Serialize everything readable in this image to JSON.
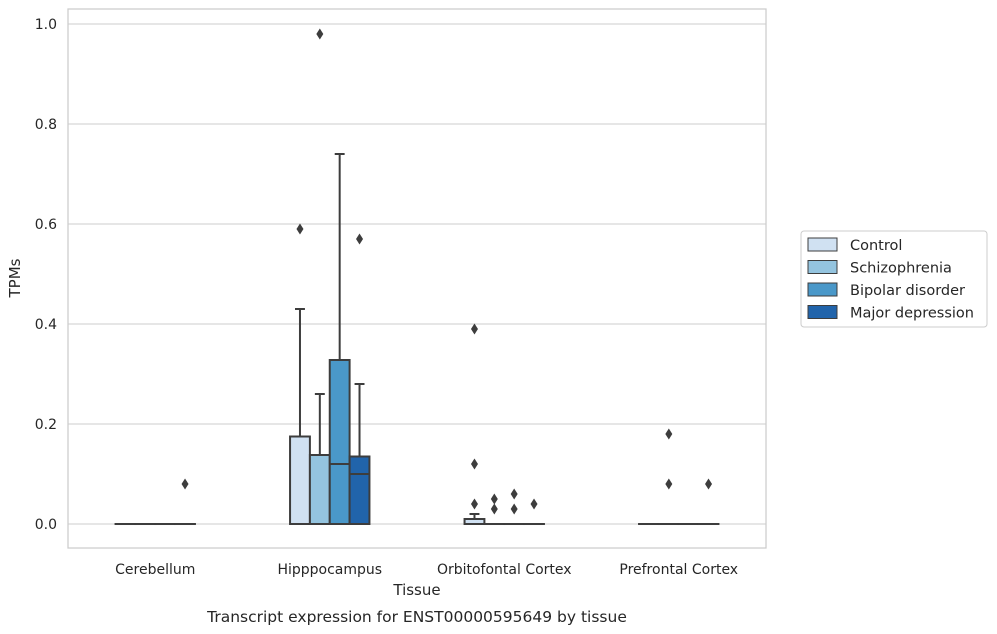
{
  "chart_data": {
    "type": "box",
    "caption": "Transcript expression for ENST00000595649 by tissue",
    "xlabel": "Tissue",
    "ylabel": "TPMs",
    "ylim": [
      -0.045,
      1.03
    ],
    "yticks": [
      "0.0",
      "0.2",
      "0.4",
      "0.6",
      "0.8",
      "1.0"
    ],
    "ytick_values": [
      0,
      0.2,
      0.4,
      0.6,
      0.8,
      1.0
    ],
    "grid": true,
    "legend_position": "right",
    "categories": [
      "Cerebellum",
      "Hipppocampus",
      "Orbitofontal Cortex",
      "Prefrontal Cortex"
    ],
    "series": [
      {
        "name": "Control",
        "color": "#d0e1f2",
        "boxes": [
          {
            "q1": 0,
            "median": 0,
            "q3": 0,
            "whislo": 0,
            "whishi": 0,
            "fliers": []
          },
          {
            "q1": 0,
            "median": 0,
            "q3": 0.175,
            "whislo": 0,
            "whishi": 0.43,
            "fliers": [
              0.59
            ]
          },
          {
            "q1": 0,
            "median": 0,
            "q3": 0.01,
            "whislo": 0,
            "whishi": 0.02,
            "fliers": [
              0.04,
              0.12,
              0.39
            ]
          },
          {
            "q1": 0,
            "median": 0,
            "q3": 0,
            "whislo": 0,
            "whishi": 0,
            "fliers": []
          }
        ]
      },
      {
        "name": "Schizophrenia",
        "color": "#94c4df",
        "boxes": [
          {
            "q1": 0,
            "median": 0,
            "q3": 0,
            "whislo": 0,
            "whishi": 0,
            "fliers": []
          },
          {
            "q1": 0,
            "median": 0,
            "q3": 0.138,
            "whislo": 0,
            "whishi": 0.26,
            "fliers": [
              0.98
            ]
          },
          {
            "q1": 0,
            "median": 0,
            "q3": 0,
            "whislo": 0,
            "whishi": 0,
            "fliers": [
              0.03,
              0.05
            ]
          },
          {
            "q1": 0,
            "median": 0,
            "q3": 0,
            "whislo": 0,
            "whishi": 0,
            "fliers": [
              0.08,
              0.18
            ]
          }
        ]
      },
      {
        "name": "Bipolar disorder",
        "color": "#4a98c9",
        "boxes": [
          {
            "q1": 0,
            "median": 0,
            "q3": 0,
            "whislo": 0,
            "whishi": 0,
            "fliers": []
          },
          {
            "q1": 0,
            "median": 0.12,
            "q3": 0.328,
            "whislo": 0,
            "whishi": 0.74,
            "fliers": []
          },
          {
            "q1": 0,
            "median": 0,
            "q3": 0,
            "whislo": 0,
            "whishi": 0,
            "fliers": [
              0.03,
              0.06
            ]
          },
          {
            "q1": 0,
            "median": 0,
            "q3": 0,
            "whislo": 0,
            "whishi": 0,
            "fliers": []
          }
        ]
      },
      {
        "name": "Major depression",
        "color": "#2164ab",
        "boxes": [
          {
            "q1": 0,
            "median": 0,
            "q3": 0,
            "whislo": 0,
            "whishi": 0,
            "fliers": [
              0.08
            ]
          },
          {
            "q1": 0,
            "median": 0.1,
            "q3": 0.135,
            "whislo": 0,
            "whishi": 0.28,
            "fliers": [
              0.57
            ]
          },
          {
            "q1": 0,
            "median": 0,
            "q3": 0,
            "whislo": 0,
            "whishi": 0,
            "fliers": [
              0.04
            ]
          },
          {
            "q1": 0,
            "median": 0,
            "q3": 0,
            "whislo": 0,
            "whishi": 0,
            "fliers": [
              0.08
            ]
          }
        ]
      }
    ]
  }
}
